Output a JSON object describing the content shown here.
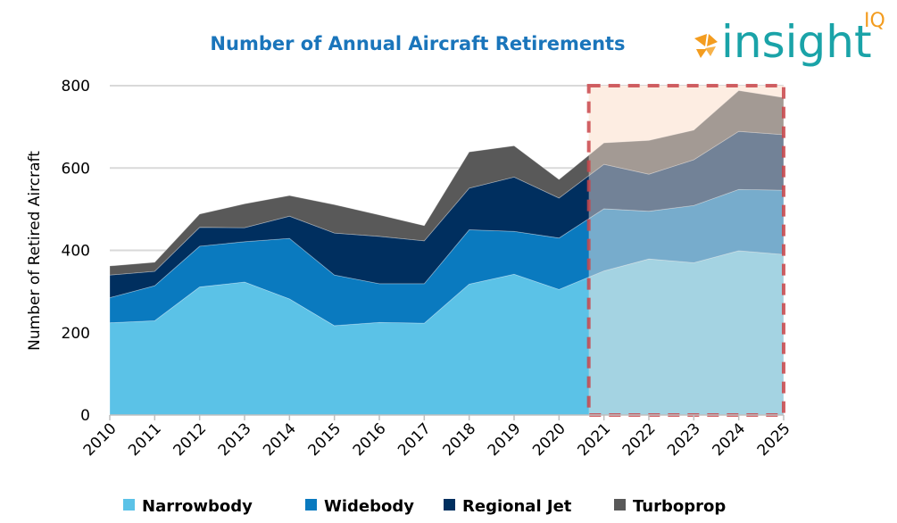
{
  "chart_data": {
    "type": "area",
    "stacked": true,
    "title": "Number of Annual Aircraft Retirements",
    "xlabel": "",
    "ylabel": "Number of Retired Aircraft",
    "ylim": [
      0,
      800
    ],
    "yticks": [
      0,
      200,
      400,
      600,
      800
    ],
    "grid": true,
    "legend_position": "bottom",
    "categories": [
      "2010",
      "2011",
      "2012",
      "2013",
      "2014",
      "2015",
      "2016",
      "2017",
      "2018",
      "2019",
      "2020",
      "2021",
      "2022",
      "2023",
      "2024",
      "2025"
    ],
    "series": [
      {
        "name": "Narrowbody",
        "color": "#5bc2e7",
        "values": [
          224,
          229,
          311,
          323,
          282,
          217,
          225,
          223,
          318,
          342,
          305,
          350,
          379,
          370,
          399,
          390
        ]
      },
      {
        "name": "Widebody",
        "color": "#0a7abf",
        "values": [
          61,
          85,
          99,
          98,
          147,
          123,
          94,
          96,
          132,
          104,
          125,
          151,
          116,
          139,
          149,
          156
        ]
      },
      {
        "name": "Regional Jet",
        "color": "#002f5f",
        "values": [
          55,
          35,
          46,
          34,
          54,
          102,
          115,
          104,
          101,
          132,
          97,
          108,
          90,
          111,
          141,
          135
        ]
      },
      {
        "name": "Turboprop",
        "color": "#595959",
        "values": [
          22,
          22,
          32,
          58,
          50,
          69,
          52,
          37,
          88,
          76,
          45,
          52,
          82,
          72,
          99,
          90
        ]
      }
    ],
    "highlight": {
      "from": "2021",
      "to": "2025",
      "style": "dashed box, forecast period",
      "color": "#c9454a"
    }
  },
  "logo": {
    "text": "insight",
    "suffix": "IQ"
  }
}
